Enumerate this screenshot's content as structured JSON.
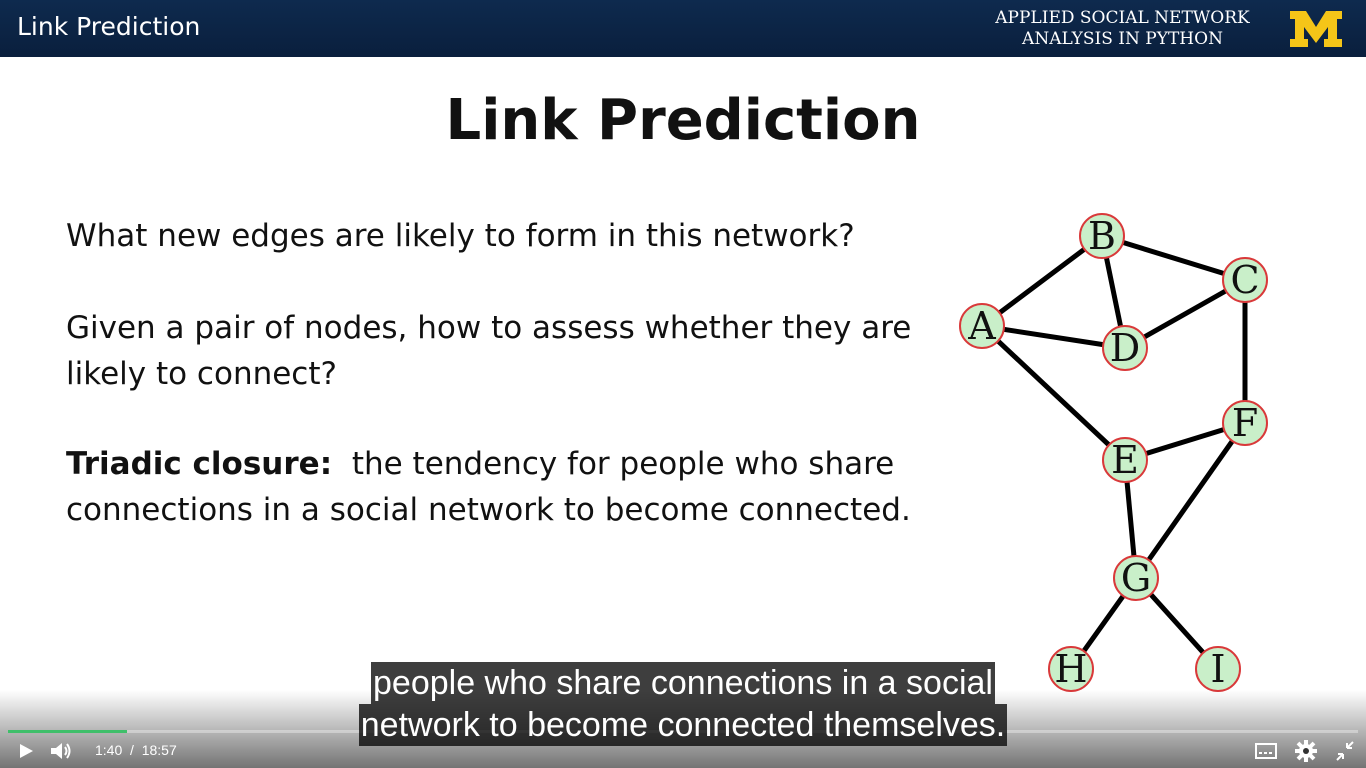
{
  "header": {
    "title": "Link Prediction",
    "brand_line1": "APPLIED SOCIAL NETWORK",
    "brand_line2": "ANALYSIS IN PYTHON",
    "logo_letter": "M"
  },
  "slide": {
    "title": "Link Prediction",
    "q1": "What new edges are likely to form in this network?",
    "q2_line1": "Given a pair of nodes, how to assess whether they are",
    "q2_line2": "likely to connect?",
    "term": "Triadic closure:",
    "def_line1": "the tendency for people who share",
    "def_line2": "connections in a social network to become connected."
  },
  "graph": {
    "nodes": [
      "A",
      "B",
      "C",
      "D",
      "E",
      "F",
      "G",
      "H",
      "I"
    ],
    "edges": [
      [
        "A",
        "B"
      ],
      [
        "A",
        "D"
      ],
      [
        "A",
        "E"
      ],
      [
        "B",
        "C"
      ],
      [
        "B",
        "D"
      ],
      [
        "C",
        "D"
      ],
      [
        "C",
        "F"
      ],
      [
        "E",
        "F"
      ],
      [
        "E",
        "G"
      ],
      [
        "F",
        "G"
      ],
      [
        "G",
        "H"
      ],
      [
        "G",
        "I"
      ]
    ],
    "node_fill": "#c9efc9",
    "node_stroke": "#d9393a"
  },
  "captions": {
    "line1": "people who share connections in a social",
    "line2": "network to become connected themselves."
  },
  "player": {
    "current_time": "1:40",
    "separator": "/",
    "duration": "18:57",
    "progress": 0.088,
    "accent": "#3fbf6a"
  },
  "icons": [
    "play-icon",
    "volume-icon",
    "captions-icon",
    "settings-icon",
    "exit-fullscreen-icon"
  ]
}
